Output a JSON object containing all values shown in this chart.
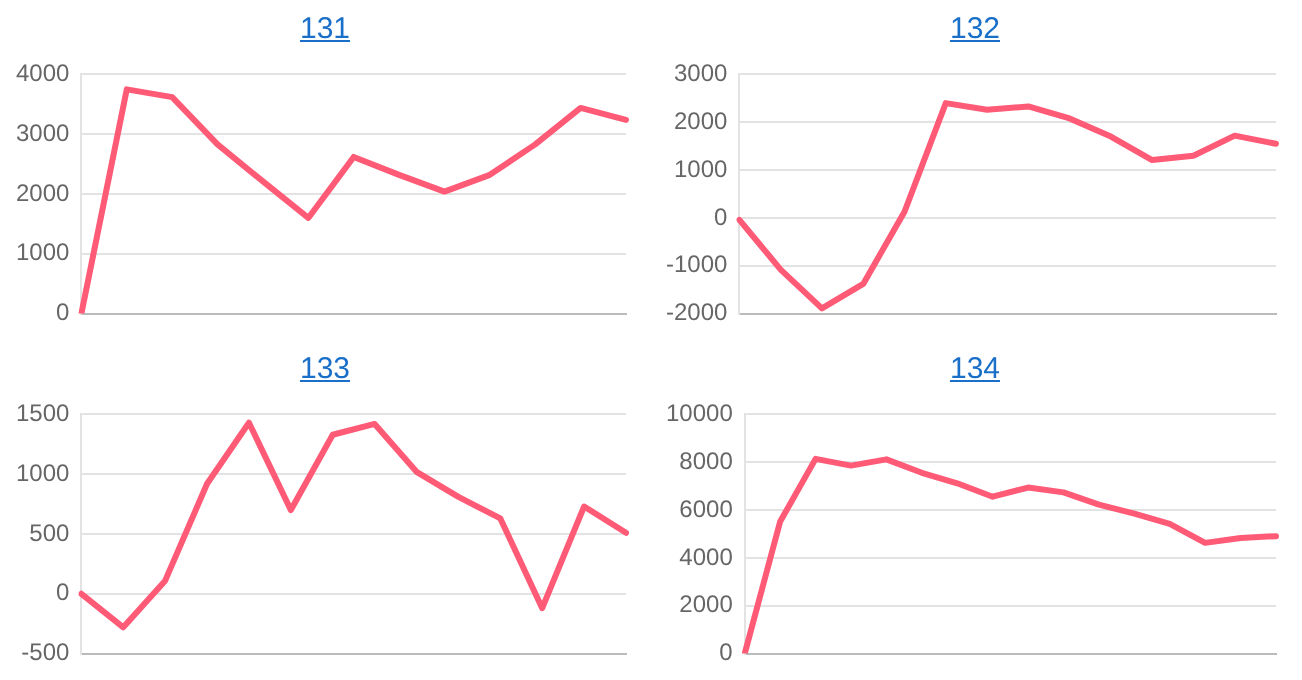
{
  "chart_data": [
    {
      "type": "line",
      "title": "131",
      "categories": [
        null,
        null,
        null,
        null,
        null,
        null,
        null,
        null,
        null,
        null,
        null,
        null,
        null
      ],
      "series": [
        {
          "color": "#ff5a76",
          "values": [
            0,
            3750,
            3620,
            2830,
            2210,
            1600,
            2620,
            2320,
            2040,
            2320,
            2830,
            3440,
            3240
          ]
        }
      ],
      "ylim": [
        0,
        4000
      ],
      "yticks": [
        0,
        1000,
        2000,
        3000,
        4000
      ],
      "grid": "y",
      "legend": false,
      "tick_labels": "y",
      "marker": "none"
    },
    {
      "type": "line",
      "title": "132",
      "categories": [
        null,
        null,
        null,
        null,
        null,
        null,
        null,
        null,
        null,
        null,
        null,
        null,
        null,
        null
      ],
      "series": [
        {
          "color": "#ff5a76",
          "values": [
            -40,
            -1080,
            -1890,
            -1380,
            130,
            2400,
            2260,
            2330,
            2080,
            1700,
            1210,
            1300,
            1720,
            1550
          ]
        }
      ],
      "ylim": [
        -2000,
        3000
      ],
      "yticks": [
        -2000,
        -1000,
        0,
        1000,
        2000,
        3000
      ],
      "grid": "y",
      "legend": false,
      "tick_labels": "y",
      "marker": "none"
    },
    {
      "type": "line",
      "title": "133",
      "categories": [
        null,
        null,
        null,
        null,
        null,
        null,
        null,
        null,
        null,
        null,
        null,
        null,
        null,
        null
      ],
      "series": [
        {
          "color": "#ff5a76",
          "values": [
            0,
            -280,
            110,
            920,
            1430,
            700,
            1330,
            1420,
            1020,
            810,
            630,
            -120,
            730,
            510
          ]
        }
      ],
      "ylim": [
        -500,
        1500
      ],
      "yticks": [
        -500,
        0,
        500,
        1000,
        1500
      ],
      "grid": "y",
      "legend": false,
      "tick_labels": "y",
      "marker": "none"
    },
    {
      "type": "line",
      "title": "134",
      "categories": [
        null,
        null,
        null,
        null,
        null,
        null,
        null,
        null,
        null,
        null,
        null,
        null,
        null,
        null,
        null,
        null
      ],
      "series": [
        {
          "color": "#ff5a76",
          "values": [
            0,
            5520,
            8140,
            7860,
            8120,
            7560,
            7120,
            6560,
            6940,
            6740,
            6230,
            5850,
            5420,
            4630,
            4830,
            4910
          ]
        }
      ],
      "ylim": [
        0,
        10000
      ],
      "yticks": [
        0,
        2000,
        4000,
        6000,
        8000,
        10000
      ],
      "grid": "y",
      "legend": false,
      "tick_labels": "y",
      "marker": "none"
    }
  ]
}
